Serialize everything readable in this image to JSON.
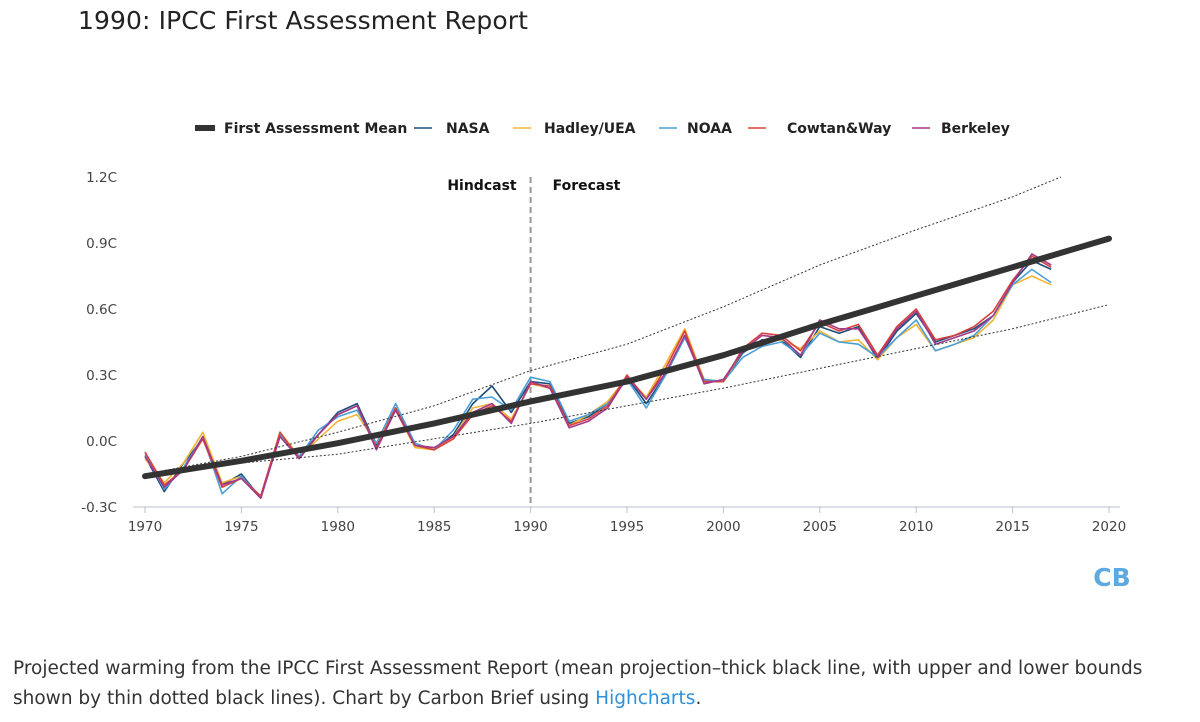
{
  "title": "1990: IPCC First Assessment Report",
  "caption": {
    "text": "Projected warming from the IPCC First Assessment Report (mean projection–thick black line, with upper and lower bounds shown by thin dotted black lines). Chart by Carbon Brief using ",
    "link_text": "Highcharts",
    "end": "."
  },
  "logo_text": "CB",
  "colors": {
    "mean": "#333333",
    "NASA": "#1d4d7a",
    "Hadley/UEA": "#f2b533",
    "NOAA": "#4a9fd9",
    "Cowtan&Way": "#d9403a",
    "Berkeley": "#a23a8a",
    "bounds": "#333333",
    "divider": "#999999",
    "logo": "#5da9e0"
  },
  "chart_data": {
    "type": "line",
    "title": "1990: IPCC First Assessment Report",
    "xlim": [
      1970,
      2020.5
    ],
    "ylim": [
      -0.3,
      1.2
    ],
    "x_ticks": [
      1970,
      1975,
      1980,
      1985,
      1990,
      1995,
      2000,
      2005,
      2010,
      2015,
      2020
    ],
    "x_tick_labels": [
      "1970",
      "1975",
      "1980",
      "1985",
      "1990",
      "1995",
      "2000",
      "2005",
      "2010",
      "2015",
      "2020"
    ],
    "y_ticks": [
      -0.3,
      0.0,
      0.3,
      0.6,
      0.9,
      1.2
    ],
    "y_tick_labels": [
      "-0.3C",
      "0.0C",
      "0.3C",
      "0.6C",
      "0.9C",
      "1.2C"
    ],
    "grid": false,
    "legend_position": "top",
    "annotations": {
      "divider_x": 1990,
      "left_label": "Hindcast",
      "right_label": "Forecast"
    },
    "series": [
      {
        "name": "First Assessment Mean",
        "style": "thick",
        "x": [
          1970,
          1975,
          1980,
          1985,
          1990,
          1995,
          2000,
          2005,
          2010,
          2015,
          2020
        ],
        "values": [
          -0.16,
          -0.09,
          -0.01,
          0.08,
          0.18,
          0.27,
          0.39,
          0.53,
          0.66,
          0.79,
          0.92
        ]
      },
      {
        "name": "Upper bound",
        "style": "dotted",
        "x": [
          1970,
          1975,
          1980,
          1985,
          1990,
          1995,
          2000,
          2005,
          2010,
          2015,
          2017.5
        ],
        "values": [
          -0.15,
          -0.07,
          0.04,
          0.16,
          0.32,
          0.44,
          0.61,
          0.8,
          0.96,
          1.11,
          1.2
        ]
      },
      {
        "name": "Lower bound",
        "style": "dotted",
        "x": [
          1970,
          1975,
          1980,
          1985,
          1990,
          1995,
          2000,
          2005,
          2010,
          2015,
          2020
        ],
        "values": [
          -0.16,
          -0.1,
          -0.06,
          0.01,
          0.08,
          0.16,
          0.24,
          0.33,
          0.42,
          0.51,
          0.62
        ]
      },
      {
        "name": "NASA",
        "x_start": 1970,
        "values": [
          -0.07,
          -0.23,
          -0.1,
          0.01,
          -0.2,
          -0.15,
          -0.26,
          0.03,
          -0.07,
          0.03,
          0.13,
          0.17,
          -0.02,
          0.15,
          -0.02,
          -0.04,
          0.03,
          0.17,
          0.25,
          0.13,
          0.27,
          0.26,
          0.08,
          0.11,
          0.17,
          0.29,
          0.17,
          0.3,
          0.48,
          0.27,
          0.27,
          0.4,
          0.46,
          0.46,
          0.38,
          0.52,
          0.49,
          0.52,
          0.37,
          0.5,
          0.58,
          0.45,
          0.48,
          0.51,
          0.57,
          0.72,
          0.82,
          0.78
        ]
      },
      {
        "name": "Hadley/UEA",
        "x_start": 1970,
        "values": [
          -0.08,
          -0.19,
          -0.1,
          0.04,
          -0.19,
          -0.16,
          -0.26,
          0.04,
          -0.07,
          0.01,
          0.09,
          0.12,
          -0.01,
          0.14,
          -0.03,
          -0.04,
          0.02,
          0.15,
          0.17,
          0.1,
          0.26,
          0.24,
          0.07,
          0.12,
          0.18,
          0.29,
          0.2,
          0.35,
          0.51,
          0.28,
          0.27,
          0.41,
          0.45,
          0.46,
          0.42,
          0.5,
          0.45,
          0.46,
          0.37,
          0.47,
          0.53,
          0.41,
          0.44,
          0.47,
          0.55,
          0.71,
          0.75,
          0.71
        ]
      },
      {
        "name": "NOAA",
        "x_start": 1970,
        "values": [
          -0.06,
          -0.22,
          -0.12,
          0.02,
          -0.24,
          -0.16,
          -0.26,
          0.03,
          -0.07,
          0.05,
          0.11,
          0.14,
          -0.01,
          0.17,
          -0.01,
          -0.04,
          0.05,
          0.19,
          0.2,
          0.14,
          0.29,
          0.27,
          0.09,
          0.12,
          0.17,
          0.28,
          0.15,
          0.3,
          0.47,
          0.28,
          0.27,
          0.38,
          0.43,
          0.45,
          0.39,
          0.49,
          0.45,
          0.44,
          0.38,
          0.47,
          0.55,
          0.41,
          0.44,
          0.48,
          0.57,
          0.71,
          0.78,
          0.72
        ]
      },
      {
        "name": "Cowtan&Way",
        "x_start": 1970,
        "values": [
          -0.05,
          -0.2,
          -0.13,
          0.01,
          -0.21,
          -0.17,
          -0.25,
          0.04,
          -0.08,
          0.03,
          0.12,
          0.16,
          -0.03,
          0.15,
          -0.02,
          -0.04,
          0.01,
          0.12,
          0.16,
          0.09,
          0.26,
          0.25,
          0.07,
          0.1,
          0.16,
          0.3,
          0.19,
          0.33,
          0.5,
          0.27,
          0.27,
          0.42,
          0.49,
          0.48,
          0.41,
          0.54,
          0.5,
          0.53,
          0.39,
          0.52,
          0.6,
          0.46,
          0.48,
          0.52,
          0.59,
          0.73,
          0.84,
          0.79
        ]
      },
      {
        "name": "Berkeley",
        "x_start": 1970,
        "values": [
          -0.07,
          -0.21,
          -0.13,
          0.02,
          -0.2,
          -0.17,
          -0.26,
          0.02,
          -0.08,
          0.03,
          0.12,
          0.16,
          -0.04,
          0.14,
          -0.02,
          -0.03,
          0.02,
          0.13,
          0.17,
          0.08,
          0.27,
          0.24,
          0.06,
          0.09,
          0.15,
          0.29,
          0.19,
          0.31,
          0.48,
          0.26,
          0.28,
          0.41,
          0.48,
          0.47,
          0.39,
          0.55,
          0.51,
          0.51,
          0.38,
          0.51,
          0.59,
          0.44,
          0.47,
          0.5,
          0.57,
          0.72,
          0.85,
          0.8
        ]
      }
    ]
  }
}
